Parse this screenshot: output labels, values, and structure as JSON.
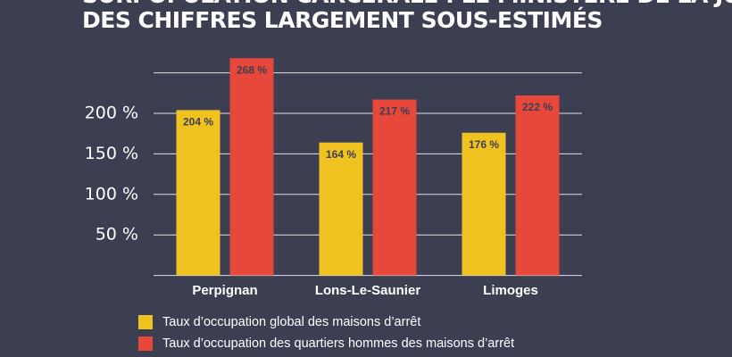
{
  "chart_data": {
    "type": "bar",
    "title": "SURPOPULATION CARCÉRALE : LE MINISTÈRE DE LA JUSTICE AFFICHE",
    "subtitle": "DES CHIFFRES LARGEMENT SOUS-ESTIMÉS",
    "categories": [
      "Perpignan",
      "Lons-Le-Saunier",
      "Limoges"
    ],
    "series": [
      {
        "name": "Taux d’occupation global des maisons d’arrêt",
        "color": "#f0c21f",
        "values": [
          204,
          164,
          176
        ],
        "value_labels": [
          "204 %",
          "164 %",
          "176 %"
        ]
      },
      {
        "name": "Taux d’occupation des quartiers hommes des maisons d’arrêt",
        "color": "#e8473c",
        "values": [
          268,
          217,
          222
        ],
        "value_labels": [
          "268 %",
          "217 %",
          "222 %"
        ]
      }
    ],
    "ylim": [
      0,
      270
    ],
    "yticks": [
      {
        "value": 50,
        "label": "50 %"
      },
      {
        "value": 100,
        "label": "100 %"
      },
      {
        "value": 150,
        "label": "150 %"
      },
      {
        "value": 200,
        "label": "200 %"
      },
      {
        "value": 250,
        "label": null
      }
    ],
    "grid": true
  }
}
